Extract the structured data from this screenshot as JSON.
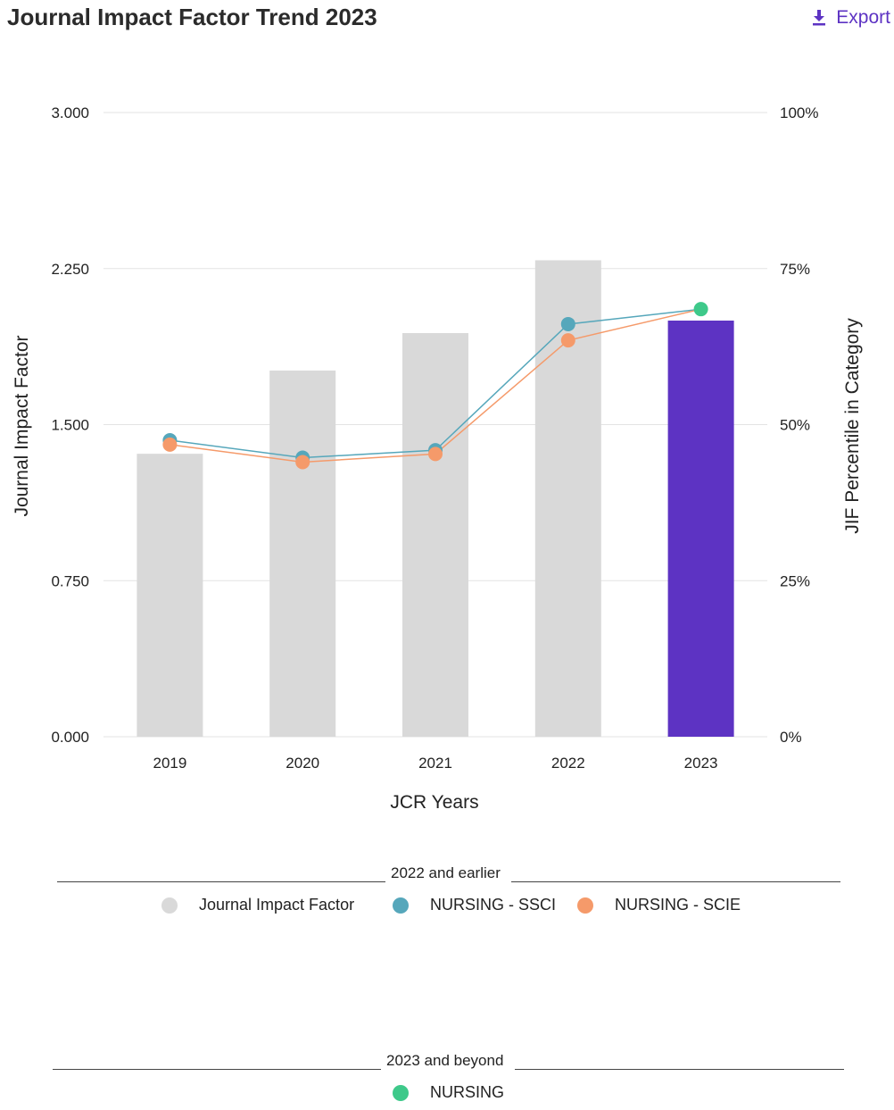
{
  "header": {
    "title": "Journal Impact Factor Trend 2023",
    "export_label": "Export",
    "export_icon": "download-icon"
  },
  "colors": {
    "bar_past": "#d9d9d9",
    "bar_current": "#5d33c3",
    "ssci": "#56a7bb",
    "scie": "#f59a6a",
    "nursing": "#3ec98a",
    "accent": "#5d33c3"
  },
  "chart_data": {
    "type": "bar",
    "title": "Journal Impact Factor Trend 2023",
    "xlabel": "JCR Years",
    "ylabel": "Journal Impact Factor",
    "y2label": "JIF Percentile in Category",
    "categories": [
      "2019",
      "2020",
      "2021",
      "2022",
      "2023"
    ],
    "ylim": [
      0,
      3
    ],
    "y2lim": [
      0,
      100
    ],
    "yticks": [
      "0.000",
      "0.750",
      "1.500",
      "2.250",
      "3.000"
    ],
    "y2ticks": [
      "0%",
      "25%",
      "50%",
      "75%",
      "100%"
    ],
    "grid": true,
    "bars": {
      "name": "Journal Impact Factor",
      "values": [
        1.36,
        1.76,
        1.94,
        2.29,
        2.0
      ]
    },
    "series": [
      {
        "name": "NURSING - SSCI",
        "axis": "percentile",
        "values": [
          47.5,
          44.7,
          45.9,
          66.1,
          null
        ]
      },
      {
        "name": "NURSING - SCIE",
        "axis": "percentile",
        "values": [
          46.8,
          44.0,
          45.3,
          63.5,
          null
        ]
      },
      {
        "name": "NURSING",
        "axis": "percentile",
        "values": [
          null,
          null,
          null,
          66.1,
          68.5
        ]
      }
    ]
  },
  "legend": {
    "past_title": "2022 and earlier",
    "past_items": [
      {
        "label": "Journal Impact Factor",
        "color": "#d9d9d9"
      },
      {
        "label": "NURSING - SSCI",
        "color": "#56a7bb"
      },
      {
        "label": "NURSING - SCIE",
        "color": "#f59a6a"
      }
    ],
    "future_title": "2023 and beyond",
    "future_items": [
      {
        "label": "NURSING",
        "color": "#3ec98a"
      }
    ]
  }
}
